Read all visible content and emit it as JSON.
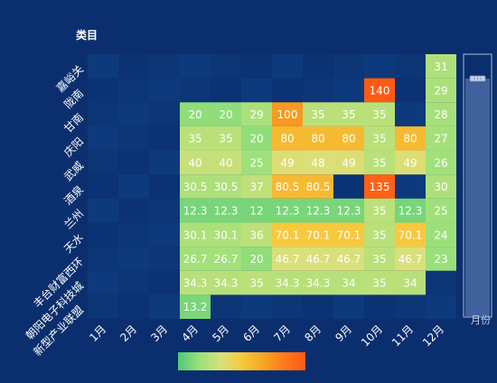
{
  "chart_data": {
    "type": "heatmap",
    "y_axis_title": "类目",
    "right_zoom_label": "月份",
    "x_categories": [
      "1月",
      "2月",
      "3月",
      "4月",
      "5月",
      "6月",
      "7月",
      "8月",
      "9月",
      "10月",
      "11月",
      "12月"
    ],
    "y_categories": [
      "嘉峪关",
      "陇南",
      "甘南",
      "庆阳",
      "武威",
      "酒泉",
      "兰州",
      "天水",
      "丰台财富西环",
      "朝阳电子科技城",
      "新型产业联盟"
    ],
    "cells": [
      {
        "x": "12月",
        "y": "嘉峪关",
        "value": 31
      },
      {
        "x": "10月",
        "y": "陇南",
        "value": 140
      },
      {
        "x": "12月",
        "y": "陇南",
        "value": 29
      },
      {
        "x": "4月",
        "y": "甘南",
        "value": 20
      },
      {
        "x": "5月",
        "y": "甘南",
        "value": 20
      },
      {
        "x": "6月",
        "y": "甘南",
        "value": 29
      },
      {
        "x": "7月",
        "y": "甘南",
        "value": 100
      },
      {
        "x": "8月",
        "y": "甘南",
        "value": 35
      },
      {
        "x": "9月",
        "y": "甘南",
        "value": 35
      },
      {
        "x": "10月",
        "y": "甘南",
        "value": 35
      },
      {
        "x": "12月",
        "y": "甘南",
        "value": 28
      },
      {
        "x": "4月",
        "y": "庆阳",
        "value": 35
      },
      {
        "x": "5月",
        "y": "庆阳",
        "value": 35
      },
      {
        "x": "6月",
        "y": "庆阳",
        "value": 20
      },
      {
        "x": "7月",
        "y": "庆阳",
        "value": 80
      },
      {
        "x": "8月",
        "y": "庆阳",
        "value": 80
      },
      {
        "x": "9月",
        "y": "庆阳",
        "value": 80
      },
      {
        "x": "10月",
        "y": "庆阳",
        "value": 35
      },
      {
        "x": "11月",
        "y": "庆阳",
        "value": 80
      },
      {
        "x": "12月",
        "y": "庆阳",
        "value": 27
      },
      {
        "x": "4月",
        "y": "武威",
        "value": 40
      },
      {
        "x": "5月",
        "y": "武威",
        "value": 40
      },
      {
        "x": "6月",
        "y": "武威",
        "value": 25
      },
      {
        "x": "7月",
        "y": "武威",
        "value": 49
      },
      {
        "x": "8月",
        "y": "武威",
        "value": 48
      },
      {
        "x": "9月",
        "y": "武威",
        "value": 49
      },
      {
        "x": "10月",
        "y": "武威",
        "value": 35
      },
      {
        "x": "11月",
        "y": "武威",
        "value": 49
      },
      {
        "x": "12月",
        "y": "武威",
        "value": 26
      },
      {
        "x": "4月",
        "y": "酒泉",
        "value": 30.5
      },
      {
        "x": "5月",
        "y": "酒泉",
        "value": 30.5
      },
      {
        "x": "6月",
        "y": "酒泉",
        "value": 37
      },
      {
        "x": "7月",
        "y": "酒泉",
        "value": 80.5
      },
      {
        "x": "8月",
        "y": "酒泉",
        "value": 80.5
      },
      {
        "x": "10月",
        "y": "酒泉",
        "value": 135
      },
      {
        "x": "12月",
        "y": "酒泉",
        "value": 30
      },
      {
        "x": "4月",
        "y": "兰州",
        "value": 12.3
      },
      {
        "x": "5月",
        "y": "兰州",
        "value": 12.3
      },
      {
        "x": "6月",
        "y": "兰州",
        "value": 12
      },
      {
        "x": "7月",
        "y": "兰州",
        "value": 12.3
      },
      {
        "x": "8月",
        "y": "兰州",
        "value": 12.3
      },
      {
        "x": "9月",
        "y": "兰州",
        "value": 12.3
      },
      {
        "x": "10月",
        "y": "兰州",
        "value": 35
      },
      {
        "x": "11月",
        "y": "兰州",
        "value": 12.3
      },
      {
        "x": "12月",
        "y": "兰州",
        "value": 25
      },
      {
        "x": "4月",
        "y": "天水",
        "value": 30.1
      },
      {
        "x": "5月",
        "y": "天水",
        "value": 30.1
      },
      {
        "x": "6月",
        "y": "天水",
        "value": 36
      },
      {
        "x": "7月",
        "y": "天水",
        "value": 70.1
      },
      {
        "x": "8月",
        "y": "天水",
        "value": 70.1
      },
      {
        "x": "9月",
        "y": "天水",
        "value": 70.1
      },
      {
        "x": "10月",
        "y": "天水",
        "value": 35
      },
      {
        "x": "11月",
        "y": "天水",
        "value": 70.1
      },
      {
        "x": "12月",
        "y": "天水",
        "value": 24
      },
      {
        "x": "4月",
        "y": "丰台财富西环",
        "value": 26.7
      },
      {
        "x": "5月",
        "y": "丰台财富西环",
        "value": 26.7
      },
      {
        "x": "6月",
        "y": "丰台财富西环",
        "value": 20
      },
      {
        "x": "7月",
        "y": "丰台财富西环",
        "value": 46.7
      },
      {
        "x": "8月",
        "y": "丰台财富西环",
        "value": 46.7
      },
      {
        "x": "9月",
        "y": "丰台财富西环",
        "value": 46.7
      },
      {
        "x": "10月",
        "y": "丰台财富西环",
        "value": 35
      },
      {
        "x": "11月",
        "y": "丰台财富西环",
        "value": 46.7
      },
      {
        "x": "12月",
        "y": "丰台财富西环",
        "value": 23
      },
      {
        "x": "4月",
        "y": "朝阳电子科技城",
        "value": 34.3
      },
      {
        "x": "5月",
        "y": "朝阳电子科技城",
        "value": 34.3
      },
      {
        "x": "6月",
        "y": "朝阳电子科技城",
        "value": 35
      },
      {
        "x": "7月",
        "y": "朝阳电子科技城",
        "value": 34.3
      },
      {
        "x": "8月",
        "y": "朝阳电子科技城",
        "value": 34.3
      },
      {
        "x": "9月",
        "y": "朝阳电子科技城",
        "value": 34
      },
      {
        "x": "10月",
        "y": "朝阳电子科技城",
        "value": 35
      },
      {
        "x": "11月",
        "y": "朝阳电子科技城",
        "value": 34
      },
      {
        "x": "4月",
        "y": "新型产业联盟",
        "value": 13.2
      }
    ],
    "visual_map": {
      "min": 0,
      "max": 140,
      "colors": [
        "#50c878",
        "#9be07a",
        "#d9e07a",
        "#f7c93e",
        "#f5a623",
        "#ff7a1a",
        "#ff5a14"
      ]
    },
    "colors": {
      "background": "#0b2f6e",
      "empty_cell_a": "#0c3676",
      "empty_cell_b": "#0b3272",
      "empty_cell_c": "#0d3a7c",
      "zoom_track": "#4a6aa3",
      "zoom_border": "#a8b8d8",
      "text": "#ffffff"
    }
  }
}
